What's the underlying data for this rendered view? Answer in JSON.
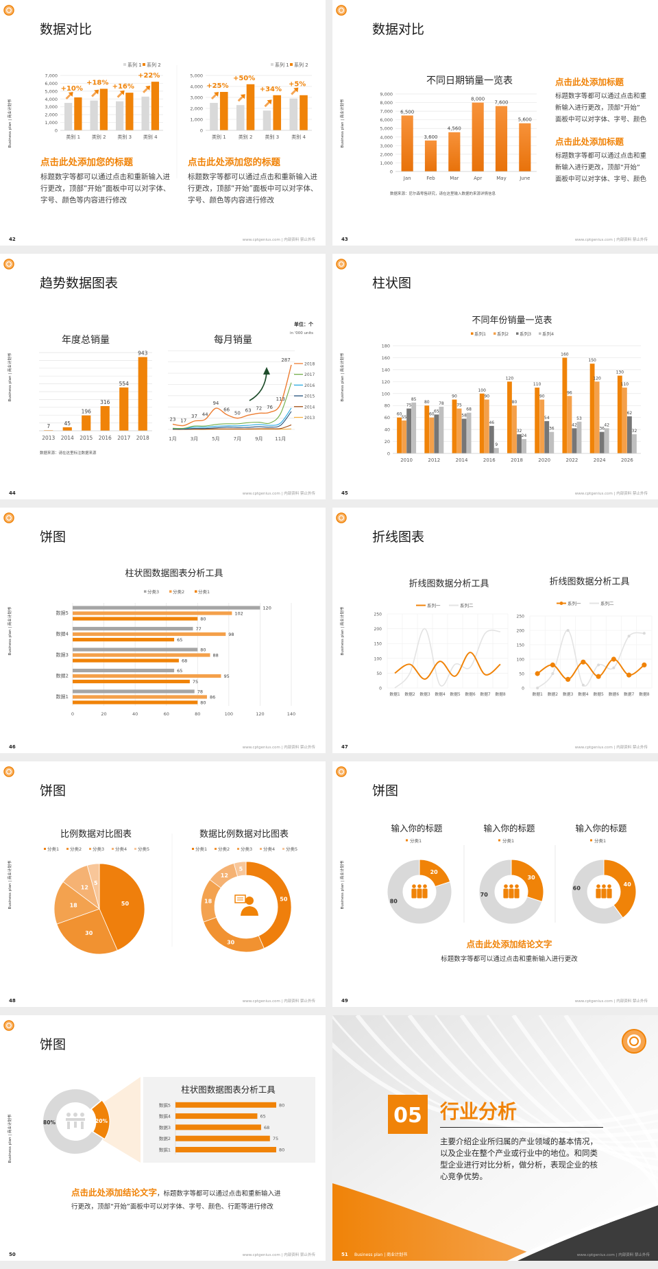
{
  "footer_text": "www.cptgenius.com | 内部资料 禁止外传",
  "side_label": "Business plan | 商业计划书",
  "colors": {
    "orange": "#F08308",
    "orange_light": "#F4A04A",
    "gray_light": "#D9D9D9",
    "gray_mid": "#BFBFBF",
    "gray_dark": "#767676",
    "text_dark": "#262626",
    "panel": "#F2F2F2",
    "arrow_green": "#1E4D2B",
    "section_dark": "#3C3C3C"
  },
  "slides": [
    {
      "page": "42",
      "title": "数据对比",
      "blocks": [
        {
          "heading": "点击此处添加您的标题",
          "lines": [
            "标题数字等都可以通过点击和重新输入进",
            "行更改，顶部“开始”面板中可以对字体、",
            "字号、颜色等内容进行修改"
          ]
        },
        {
          "heading": "点击此处添加您的标题",
          "lines": [
            "标题数字等都可以通过点击和重新输入进",
            "行更改，顶部“开始”面板中可以对字体、",
            "字号、颜色等内容进行修改"
          ]
        }
      ]
    },
    {
      "page": "43",
      "title": "数据对比",
      "source": "数据来源：尼尔森零售研究，请在这里输入数据的来源详情信息",
      "blocks": [
        {
          "heading": "点击此处添加标题",
          "lines": [
            "标题数字等都可以通过点击和重",
            "新输入进行更改，顶部“开始”",
            "面板中可以对字体、字号、颜色"
          ]
        },
        {
          "heading": "点击此处添加标题",
          "lines": [
            "标题数字等都可以通过点击和重",
            "新输入进行更改，顶部“开始”",
            "面板中可以对字体、字号、颜色"
          ]
        }
      ]
    },
    {
      "page": "44",
      "title": "趋势数据图表",
      "source": "数据来源：请在这里标注数据来源",
      "unit": "单位：个",
      "unit_en": "in '000 units"
    },
    {
      "page": "45",
      "title": "柱状图"
    },
    {
      "page": "46",
      "title": "饼图"
    },
    {
      "page": "47",
      "title": "折线图表"
    },
    {
      "page": "48",
      "title": "饼图"
    },
    {
      "page": "49",
      "title": "饼图",
      "conclusion": "点击此处添加结论文字",
      "conclusion_text": "标题数字等都可以通过点击和重新输入进行更改"
    },
    {
      "page": "50",
      "title": "饼图",
      "conclusion": "点击此处添加结论文字",
      "conclusion_text_1": "，标题数字等都可以通过点击和重新输入进",
      "conclusion_text_2": "行更改，顶部“开始”面板中可以对字体、字号、颜色、行距等进行修改"
    },
    {
      "page": "51",
      "section": true,
      "number": "05",
      "title": "行业分析",
      "lines": [
        "主要介绍企业所归属的产业领域的基本情况，",
        "以及企业在整个产业或行业中的地位。和同类",
        "型企业进行对比分析，做分析，表现企业的核",
        "心竞争优势。"
      ],
      "footer_label": "Business plan | 商业计划书"
    }
  ],
  "chart_data": [
    {
      "type": "bar",
      "categories": [
        "类别 1",
        "类别 2",
        "类别 3",
        "类别 4"
      ],
      "ylim": [
        0,
        7000
      ],
      "yticks": [
        "0",
        "1,000",
        "2,000",
        "3,000",
        "4,000",
        "5,000",
        "6,000",
        "7,000"
      ],
      "legend": "top-right",
      "series": [
        {
          "name": "系列 1",
          "color": "#D9D9D9",
          "values": [
            3500,
            3800,
            3700,
            4300
          ]
        },
        {
          "name": "系列 2",
          "color": "#F08308",
          "values": [
            4200,
            5300,
            4800,
            6200
          ]
        }
      ],
      "annotations": [
        "+10%",
        "+18%",
        "+16%",
        "+22%"
      ]
    },
    {
      "type": "bar",
      "categories": [
        "类别 1",
        "类别 2",
        "类别 3",
        "类别 4"
      ],
      "ylim": [
        0,
        5000
      ],
      "yticks": [
        "0",
        "1,000",
        "2,000",
        "3,000",
        "4,000",
        "5,000"
      ],
      "legend": "top-right",
      "series": [
        {
          "name": "系列 1",
          "color": "#D9D9D9",
          "values": [
            2500,
            2300,
            1800,
            2900
          ]
        },
        {
          "name": "系列 2",
          "color": "#F08308",
          "values": [
            3500,
            4200,
            3200,
            3200
          ]
        }
      ],
      "annotations": [
        "+25%",
        "+50%",
        "+34%",
        "+5%"
      ]
    },
    {
      "type": "bar",
      "title": "不同日期销量一览表",
      "categories": [
        "Jan",
        "Feb",
        "Mar",
        "Apr",
        "May",
        "June"
      ],
      "ylim": [
        0,
        9000
      ],
      "yticks": [
        "0",
        "1,000",
        "2,000",
        "3,000",
        "4,000",
        "5,000",
        "6,000",
        "7,000",
        "8,000",
        "9,000"
      ],
      "series": [
        {
          "color": "#F08308",
          "values": [
            6500,
            3600,
            4560,
            8000,
            7600,
            5600
          ],
          "labels": [
            "6,500",
            "3,600",
            "4,560",
            "8,000",
            "7,600",
            "5,600"
          ]
        }
      ]
    },
    {
      "type": "bar",
      "title": "年度总销量",
      "categories": [
        "2013",
        "2014",
        "2015",
        "2016",
        "2017",
        "2018"
      ],
      "ylim": [
        0,
        1000
      ],
      "grid": true,
      "series": [
        {
          "color": "#F08308",
          "values": [
            7,
            45,
            196,
            316,
            554,
            943
          ]
        }
      ]
    },
    {
      "type": "line",
      "title": "每月销量",
      "x": [
        1,
        2,
        3,
        4,
        5,
        6,
        7,
        8,
        9,
        10,
        11,
        12
      ],
      "xtick_labels": [
        "1月",
        "3月",
        "5月",
        "7月",
        "9月",
        "11月"
      ],
      "ylim": [
        0,
        350
      ],
      "grid": true,
      "legend": "right",
      "series": [
        {
          "name": "2018",
          "color": "#ED7D31",
          "values": [
            23,
            17,
            37,
            44,
            94,
            66,
            50,
            63,
            72,
            76,
            113,
            287
          ]
        },
        {
          "name": "2017",
          "color": "#70AD47",
          "values": [
            5,
            5,
            15,
            15,
            22,
            25,
            25,
            30,
            32,
            28,
            70,
            208
          ]
        },
        {
          "name": "2016",
          "color": "#27A9E1",
          "values": [
            4,
            4,
            10,
            10,
            14,
            16,
            16,
            18,
            22,
            18,
            28,
            95
          ]
        },
        {
          "name": "2015",
          "color": "#1F4E79",
          "values": [
            2,
            2,
            4,
            4,
            7,
            10,
            9,
            9,
            12,
            10,
            18,
            80
          ]
        },
        {
          "name": "2014",
          "color": "#9E480E",
          "values": [
            0,
            0,
            1,
            1,
            2,
            2,
            2,
            2,
            3,
            3,
            4,
            20
          ]
        },
        {
          "name": "2013",
          "color": "#F5B041",
          "values": [
            0,
            0,
            0,
            0,
            1,
            1,
            1,
            1,
            1,
            1,
            1,
            2
          ]
        }
      ]
    },
    {
      "type": "bar",
      "title": "不同年份销量一览表",
      "categories": [
        "2010",
        "2012",
        "2014",
        "2016",
        "2018",
        "2020",
        "2022",
        "2024",
        "2026"
      ],
      "ylim": [
        0,
        180
      ],
      "yticks": [
        "0",
        "20",
        "40",
        "60",
        "80",
        "100",
        "120",
        "140",
        "160",
        "180"
      ],
      "legend": "top",
      "series": [
        {
          "name": "系列1",
          "color": "#F08308",
          "values": [
            60,
            80,
            90,
            100,
            120,
            110,
            160,
            150,
            130
          ]
        },
        {
          "name": "系列2",
          "color": "#F4A04A",
          "values": [
            55,
            60,
            75,
            90,
            80,
            90,
            96,
            120,
            110
          ]
        },
        {
          "name": "系列3",
          "color": "#767676",
          "values": [
            75,
            65,
            58,
            46,
            32,
            54,
            42,
            36,
            62
          ]
        },
        {
          "name": "系列4",
          "color": "#BFBFBF",
          "values": [
            85,
            78,
            68,
            9,
            24,
            36,
            53,
            42,
            32
          ]
        }
      ]
    },
    {
      "type": "bar",
      "orientation": "horizontal",
      "title": "柱状图数据图表分析工具",
      "categories": [
        "数据1",
        "数据2",
        "数据3",
        "数据4",
        "数据5"
      ],
      "xlim": [
        0,
        140
      ],
      "xticks": [
        "0",
        "20",
        "40",
        "60",
        "80",
        "100",
        "120",
        "140"
      ],
      "legend": "top",
      "series": [
        {
          "name": "分类3",
          "color": "#A5A5A5",
          "values": [
            78,
            65,
            80,
            77,
            120
          ]
        },
        {
          "name": "分类2",
          "color": "#F4A04A",
          "values": [
            86,
            95,
            88,
            98,
            102
          ]
        },
        {
          "name": "分类1",
          "color": "#F08308",
          "values": [
            80,
            75,
            68,
            65,
            80
          ]
        }
      ]
    },
    {
      "type": "line",
      "title": "折线图数据分析工具",
      "categories": [
        "数据1",
        "数据2",
        "数据3",
        "数据4",
        "数据5",
        "数据6",
        "数据7",
        "数据8"
      ],
      "ylim": [
        0,
        250
      ],
      "yticks": [
        "0",
        "50",
        "100",
        "150",
        "200",
        "250"
      ],
      "legend": "top",
      "smooth": true,
      "series": [
        {
          "name": "系列一",
          "color": "#F08308",
          "values": [
            50,
            80,
            30,
            90,
            40,
            120,
            45,
            80
          ]
        },
        {
          "name": "系列二",
          "color": "#E3E3E3",
          "values": [
            0,
            50,
            200,
            10,
            80,
            70,
            185,
            190
          ]
        }
      ]
    },
    {
      "type": "line",
      "title": "折线图数据分析工具",
      "categories": [
        "数据1",
        "数据2",
        "数据3",
        "数据4",
        "数据5",
        "数据6",
        "数据7",
        "数据8"
      ],
      "ylim": [
        0,
        250
      ],
      "yticks": [
        "0",
        "50",
        "100",
        "150",
        "200",
        "250"
      ],
      "legend": "top",
      "smooth": true,
      "markers": true,
      "series": [
        {
          "name": "系列一",
          "color": "#F08308",
          "values": [
            50,
            80,
            30,
            90,
            40,
            100,
            45,
            80
          ]
        },
        {
          "name": "系列二",
          "color": "#E3E3E3",
          "values": [
            0,
            50,
            200,
            10,
            80,
            70,
            180,
            190
          ]
        }
      ]
    },
    {
      "type": "pie",
      "title": "比例数据对比图表",
      "labels": [
        "分类1",
        "分类2",
        "分类3",
        "分类4",
        "分类5"
      ],
      "values": [
        50,
        30,
        18,
        12,
        5
      ],
      "colors": [
        "#EF7F0C",
        "#F19231",
        "#F3A24F",
        "#F5B273",
        "#F8C699"
      ],
      "legend": "top"
    },
    {
      "type": "pie",
      "donut": true,
      "title": "数据比例数据对比图表",
      "labels": [
        "分类1",
        "分类2",
        "分类3",
        "分类4",
        "分类5"
      ],
      "values": [
        50,
        30,
        18,
        12,
        5
      ],
      "colors": [
        "#EF7F0C",
        "#F19231",
        "#F3A24F",
        "#F5B273",
        "#F8C699"
      ],
      "legend": "top"
    },
    {
      "type": "pie",
      "donut": true,
      "title": "输入你的标题",
      "legend_label": "分类1",
      "values": [
        20,
        80
      ],
      "colors": [
        "#F08308",
        "#D9D9D9"
      ]
    },
    {
      "type": "pie",
      "donut": true,
      "title": "输入你的标题",
      "legend_label": "分类1",
      "values": [
        30,
        70
      ],
      "colors": [
        "#F08308",
        "#D9D9D9"
      ]
    },
    {
      "type": "pie",
      "donut": true,
      "title": "输入你的标题",
      "legend_label": "分类1",
      "values": [
        40,
        60
      ],
      "colors": [
        "#F08308",
        "#D9D9D9"
      ]
    },
    {
      "type": "pie",
      "donut": true,
      "values": [
        80,
        20
      ],
      "value_labels": [
        "80%",
        "20%"
      ],
      "colors": [
        "#D9D9D9",
        "#F08308"
      ]
    },
    {
      "type": "bar",
      "orientation": "horizontal",
      "title": "柱状图数据图表分析工具",
      "categories": [
        "数据1",
        "数据2",
        "数据3",
        "数据4",
        "数据5"
      ],
      "series": [
        {
          "color": "#F08308",
          "values": [
            80,
            75,
            68,
            65,
            80
          ]
        }
      ]
    }
  ]
}
